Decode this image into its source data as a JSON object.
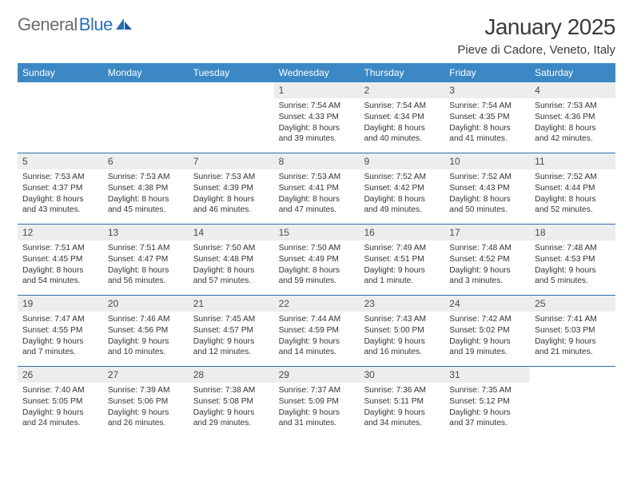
{
  "brand": {
    "part1": "General",
    "part2": "Blue"
  },
  "title": "January 2025",
  "location": "Pieve di Cadore, Veneto, Italy",
  "colors": {
    "header_bg": "#3b88c4",
    "header_text": "#ffffff",
    "daynum_bg": "#eceded",
    "week_divider": "#2f6ea8",
    "body_text": "#333333",
    "title_text": "#3a3a3a",
    "logo_gray": "#6b6b6b",
    "logo_blue": "#2a6fb5"
  },
  "dow": [
    "Sunday",
    "Monday",
    "Tuesday",
    "Wednesday",
    "Thursday",
    "Friday",
    "Saturday"
  ],
  "weeks": [
    [
      null,
      null,
      null,
      {
        "n": "1",
        "sr": "7:54 AM",
        "ss": "4:33 PM",
        "dl": "8 hours and 39 minutes."
      },
      {
        "n": "2",
        "sr": "7:54 AM",
        "ss": "4:34 PM",
        "dl": "8 hours and 40 minutes."
      },
      {
        "n": "3",
        "sr": "7:54 AM",
        "ss": "4:35 PM",
        "dl": "8 hours and 41 minutes."
      },
      {
        "n": "4",
        "sr": "7:53 AM",
        "ss": "4:36 PM",
        "dl": "8 hours and 42 minutes."
      }
    ],
    [
      {
        "n": "5",
        "sr": "7:53 AM",
        "ss": "4:37 PM",
        "dl": "8 hours and 43 minutes."
      },
      {
        "n": "6",
        "sr": "7:53 AM",
        "ss": "4:38 PM",
        "dl": "8 hours and 45 minutes."
      },
      {
        "n": "7",
        "sr": "7:53 AM",
        "ss": "4:39 PM",
        "dl": "8 hours and 46 minutes."
      },
      {
        "n": "8",
        "sr": "7:53 AM",
        "ss": "4:41 PM",
        "dl": "8 hours and 47 minutes."
      },
      {
        "n": "9",
        "sr": "7:52 AM",
        "ss": "4:42 PM",
        "dl": "8 hours and 49 minutes."
      },
      {
        "n": "10",
        "sr": "7:52 AM",
        "ss": "4:43 PM",
        "dl": "8 hours and 50 minutes."
      },
      {
        "n": "11",
        "sr": "7:52 AM",
        "ss": "4:44 PM",
        "dl": "8 hours and 52 minutes."
      }
    ],
    [
      {
        "n": "12",
        "sr": "7:51 AM",
        "ss": "4:45 PM",
        "dl": "8 hours and 54 minutes."
      },
      {
        "n": "13",
        "sr": "7:51 AM",
        "ss": "4:47 PM",
        "dl": "8 hours and 56 minutes."
      },
      {
        "n": "14",
        "sr": "7:50 AM",
        "ss": "4:48 PM",
        "dl": "8 hours and 57 minutes."
      },
      {
        "n": "15",
        "sr": "7:50 AM",
        "ss": "4:49 PM",
        "dl": "8 hours and 59 minutes."
      },
      {
        "n": "16",
        "sr": "7:49 AM",
        "ss": "4:51 PM",
        "dl": "9 hours and 1 minute."
      },
      {
        "n": "17",
        "sr": "7:48 AM",
        "ss": "4:52 PM",
        "dl": "9 hours and 3 minutes."
      },
      {
        "n": "18",
        "sr": "7:48 AM",
        "ss": "4:53 PM",
        "dl": "9 hours and 5 minutes."
      }
    ],
    [
      {
        "n": "19",
        "sr": "7:47 AM",
        "ss": "4:55 PM",
        "dl": "9 hours and 7 minutes."
      },
      {
        "n": "20",
        "sr": "7:46 AM",
        "ss": "4:56 PM",
        "dl": "9 hours and 10 minutes."
      },
      {
        "n": "21",
        "sr": "7:45 AM",
        "ss": "4:57 PM",
        "dl": "9 hours and 12 minutes."
      },
      {
        "n": "22",
        "sr": "7:44 AM",
        "ss": "4:59 PM",
        "dl": "9 hours and 14 minutes."
      },
      {
        "n": "23",
        "sr": "7:43 AM",
        "ss": "5:00 PM",
        "dl": "9 hours and 16 minutes."
      },
      {
        "n": "24",
        "sr": "7:42 AM",
        "ss": "5:02 PM",
        "dl": "9 hours and 19 minutes."
      },
      {
        "n": "25",
        "sr": "7:41 AM",
        "ss": "5:03 PM",
        "dl": "9 hours and 21 minutes."
      }
    ],
    [
      {
        "n": "26",
        "sr": "7:40 AM",
        "ss": "5:05 PM",
        "dl": "9 hours and 24 minutes."
      },
      {
        "n": "27",
        "sr": "7:39 AM",
        "ss": "5:06 PM",
        "dl": "9 hours and 26 minutes."
      },
      {
        "n": "28",
        "sr": "7:38 AM",
        "ss": "5:08 PM",
        "dl": "9 hours and 29 minutes."
      },
      {
        "n": "29",
        "sr": "7:37 AM",
        "ss": "5:09 PM",
        "dl": "9 hours and 31 minutes."
      },
      {
        "n": "30",
        "sr": "7:36 AM",
        "ss": "5:11 PM",
        "dl": "9 hours and 34 minutes."
      },
      {
        "n": "31",
        "sr": "7:35 AM",
        "ss": "5:12 PM",
        "dl": "9 hours and 37 minutes."
      },
      null
    ]
  ],
  "labels": {
    "sunrise": "Sunrise:",
    "sunset": "Sunset:",
    "daylight": "Daylight:"
  }
}
